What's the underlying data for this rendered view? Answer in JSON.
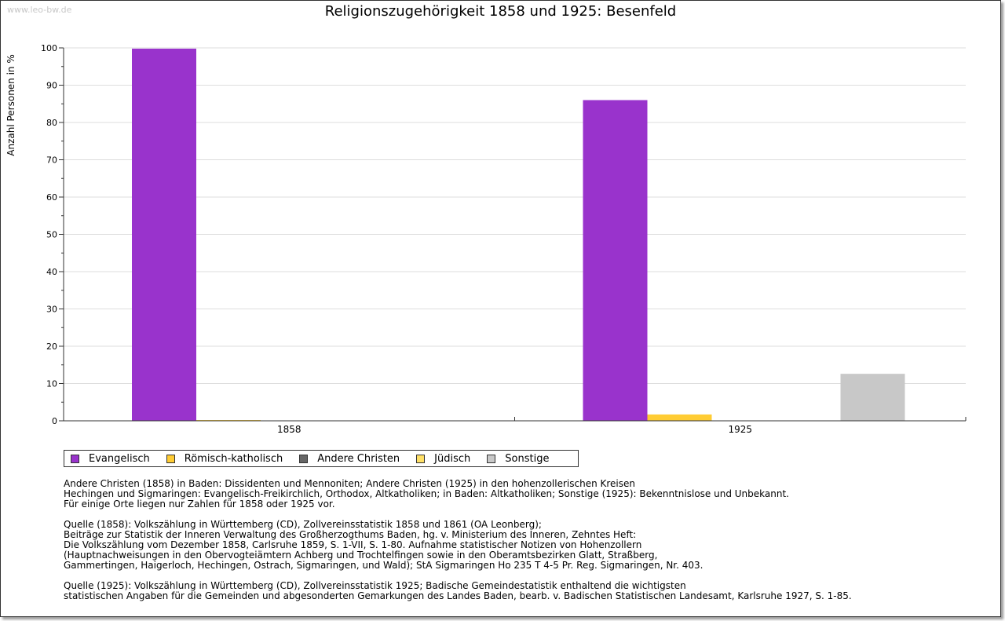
{
  "watermark": "www.leo-bw.de",
  "chart_data": {
    "type": "bar",
    "title": "Religionszugehörigkeit 1858 und 1925: Besenfeld",
    "ylabel": "Anzahl Personen in %",
    "xlabel": "",
    "ylim": [
      0,
      100
    ],
    "yticks": [
      0,
      10,
      20,
      30,
      40,
      50,
      60,
      70,
      80,
      90,
      100
    ],
    "categories": [
      "1858",
      "1925"
    ],
    "series": [
      {
        "name": "Evangelisch",
        "color": "#9933cc",
        "values": [
          99.8,
          86.0
        ]
      },
      {
        "name": "Römisch-katholisch",
        "color": "#ffcc33",
        "values": [
          0.2,
          1.7
        ]
      },
      {
        "name": "Andere Christen",
        "color": "#666666",
        "values": [
          0,
          0
        ]
      },
      {
        "name": "Jüdisch",
        "color": "#ffe066",
        "values": [
          0,
          0
        ]
      },
      {
        "name": "Sonstige",
        "color": "#c8c8c8",
        "values": [
          0,
          12.6
        ]
      }
    ],
    "grid": true,
    "legend_position": "bottom"
  },
  "notes": [
    [
      "Andere Christen (1858) in Baden: Dissidenten und Mennoniten; Andere Christen (1925) in den hohenzollerischen Kreisen",
      "Hechingen und Sigmaringen: Evangelisch-Freikirchlich, Orthodox, Altkatholiken; in Baden: Altkatholiken; Sonstige (1925): Bekenntnislose und Unbekannt.",
      "Für einige Orte liegen nur Zahlen für 1858 oder 1925 vor."
    ],
    [
      "Quelle (1858): Volkszählung in Württemberg (CD), Zollvereinsstatistik 1858 und 1861 (OA Leonberg);",
      "Beiträge zur Statistik der Inneren Verwaltung des Großherzogthums Baden, hg. v. Ministerium des Inneren, Zehntes Heft:",
      "Die Volkszählung vom Dezember 1858, Carlsruhe 1859, S. 1-VII, S. 1-80. Aufnahme statistischer Notizen von Hohenzollern",
      "(Hauptnachweisungen in den Obervogteiämtern Achberg und Trochtelfingen sowie in den Oberamtsbezirken Glatt, Straßberg,",
      "Gammertingen, Haigerloch, Hechingen, Ostrach, Sigmaringen, und Wald); StA Sigmaringen Ho 235 T 4-5 Pr. Reg. Sigmaringen, Nr. 403."
    ],
    [
      "Quelle (1925): Volkszählung in Württemberg (CD), Zollvereinsstatistik 1925; Badische Gemeindestatistik enthaltend die wichtigsten",
      "statistischen Angaben für die Gemeinden und abgesonderten Gemarkungen des Landes Baden, bearb. v. Badischen Statistischen Landesamt, Karlsruhe 1927, S. 1-85."
    ]
  ]
}
